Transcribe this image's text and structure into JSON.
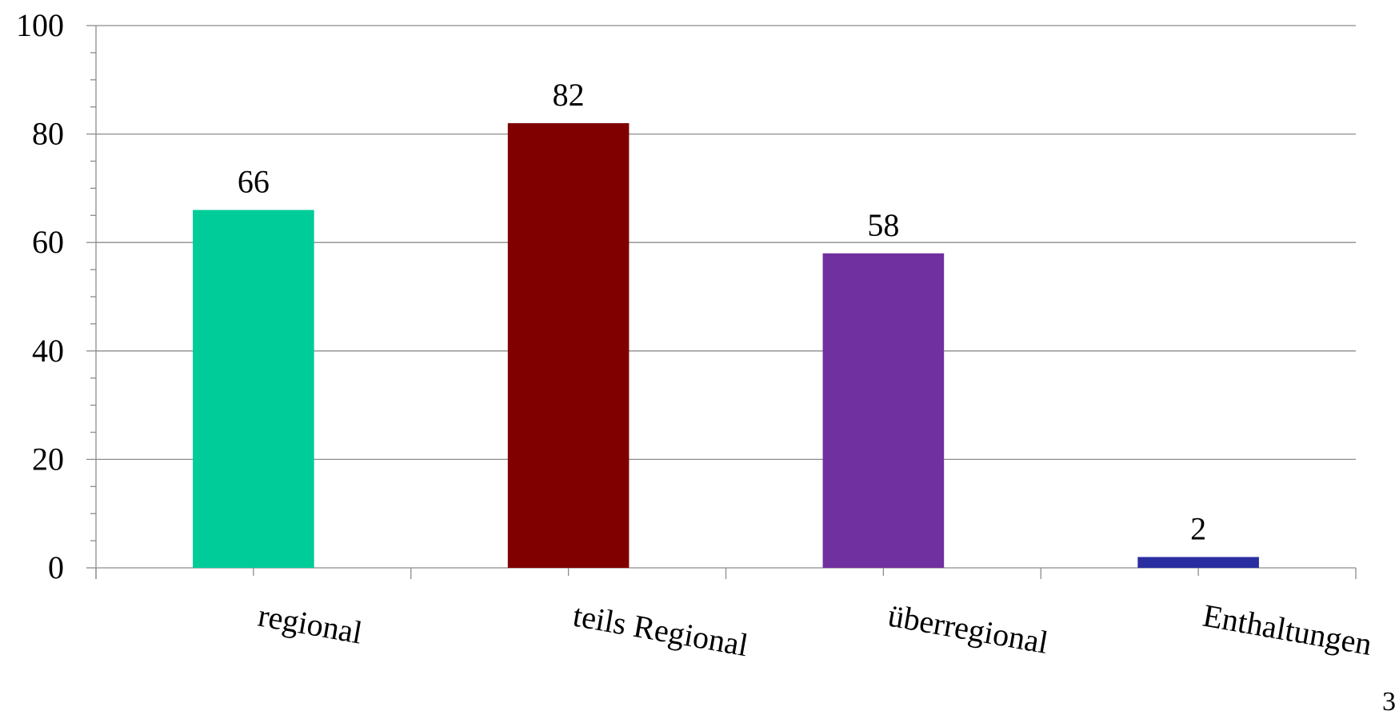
{
  "chart_data": {
    "type": "bar",
    "categories": [
      "regional",
      "teils Regional",
      "überregional",
      "Enthaltungen"
    ],
    "values": [
      66,
      82,
      58,
      2
    ],
    "data_labels": [
      "66",
      "82",
      "58",
      "2"
    ],
    "colors": [
      "#00CC99",
      "#800000",
      "#7030A0",
      "#2A2EA0"
    ],
    "ylim": [
      0,
      100
    ],
    "y_ticks": [
      0,
      20,
      40,
      60,
      80,
      100
    ],
    "y_tick_labels": [
      "0",
      "20",
      "40",
      "60",
      "80",
      "100"
    ],
    "grid": true,
    "legend": "none",
    "title": "",
    "xlabel": "",
    "ylabel": ""
  },
  "page_number": "3"
}
